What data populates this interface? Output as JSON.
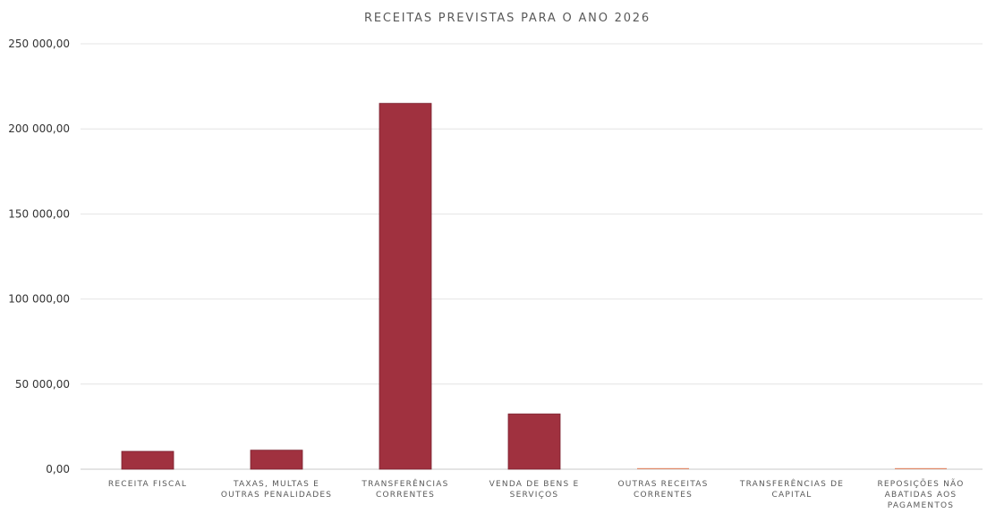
{
  "chart_data": {
    "type": "bar",
    "title": "RECEITAS PREVISTAS PARA O ANO 2026",
    "xlabel": "",
    "ylabel": "",
    "categories": [
      [
        "RECEITA FISCAL"
      ],
      [
        "TAXAS, MULTAS E",
        "OUTRAS PENALIDADES"
      ],
      [
        "TRANSFERÊNCIAS",
        "CORRENTES"
      ],
      [
        "VENDA DE BENS E",
        "SERVIÇOS"
      ],
      [
        "OUTRAS RECEITAS",
        "CORRENTES"
      ],
      [
        "TRANSFERÊNCIAS DE",
        "CAPITAL"
      ],
      [
        "REPOSIÇÕES NÃO",
        "ABATIDAS AOS",
        "PAGAMENTOS"
      ]
    ],
    "values": [
      10500,
      11200,
      215000,
      32500,
      300,
      0,
      250
    ],
    "ylim": [
      0,
      250000
    ],
    "yticks": [
      {
        "value": 0,
        "label": "0,00"
      },
      {
        "value": 50000,
        "label": "50 000,00"
      },
      {
        "value": 100000,
        "label": "100 000,00"
      },
      {
        "value": 150000,
        "label": "150 000,00"
      },
      {
        "value": 200000,
        "label": "200 000,00"
      },
      {
        "value": 250000,
        "label": "250 000,00"
      }
    ],
    "grid": true,
    "legend": "none",
    "bar_color": "#a0313f",
    "bar_edge_color": "#7a2230",
    "small_bar_color": "#e08a6a"
  }
}
